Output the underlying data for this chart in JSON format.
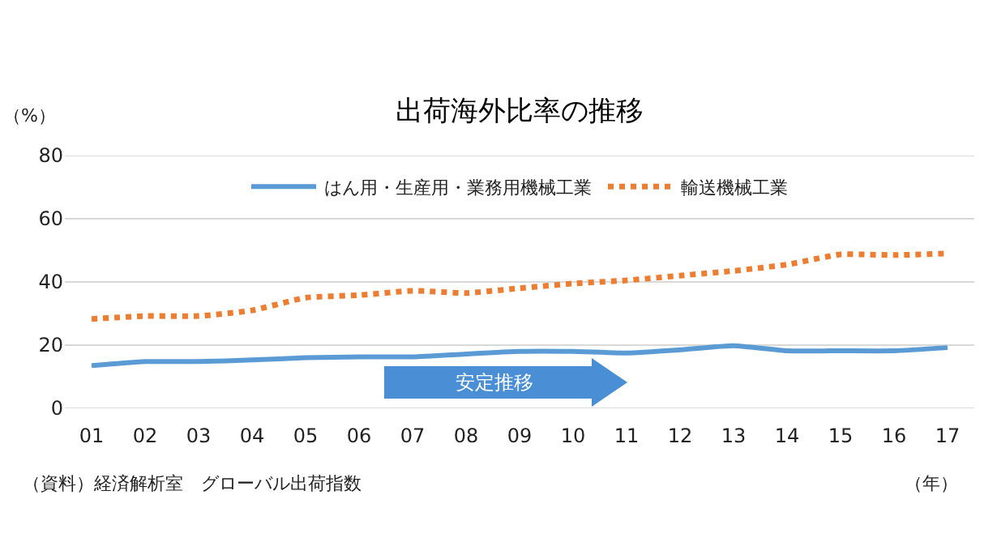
{
  "chart_data": {
    "type": "line",
    "title": "出荷海外比率の推移",
    "ylabel": "（%）",
    "xlabel": "（年）",
    "categories": [
      "01",
      "02",
      "03",
      "04",
      "05",
      "06",
      "07",
      "08",
      "09",
      "10",
      "11",
      "12",
      "13",
      "14",
      "15",
      "16",
      "17"
    ],
    "series": [
      {
        "name": "はん用・生産用・業務用機械工業",
        "color": "#5b9bd5",
        "line_style": "solid",
        "values": [
          13.5,
          14.8,
          14.8,
          15.3,
          16,
          16.3,
          16.3,
          17.2,
          18,
          18,
          17.5,
          18.5,
          19.8,
          18.2,
          18.2,
          18.2,
          19.2
        ]
      },
      {
        "name": "輸送機械工業",
        "color": "#ed7d31",
        "line_style": "dotted",
        "values": [
          28.3,
          29.2,
          29.2,
          31,
          35,
          35.8,
          37.2,
          36.5,
          38,
          39.5,
          40.5,
          42,
          43.5,
          45.5,
          48.7,
          48.5,
          49
        ]
      }
    ],
    "ylim": [
      0,
      80
    ],
    "yticks": [
      0,
      20,
      40,
      60,
      80
    ],
    "grid": "y",
    "legend": "top",
    "marker": "none",
    "annotations": [
      "安定推移",
      "（資料）経済解析室　グローバル出荷指数"
    ]
  }
}
